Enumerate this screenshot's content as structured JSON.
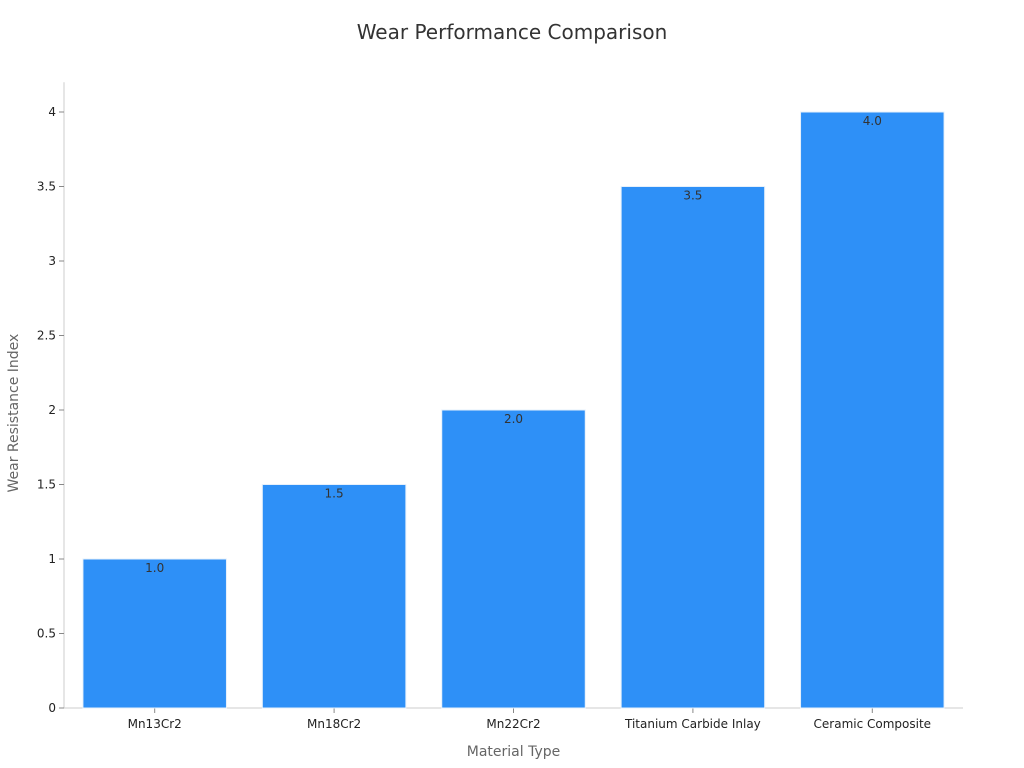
{
  "chart_data": {
    "type": "bar",
    "title": "Wear Performance Comparison",
    "xlabel": "Material Type",
    "ylabel": "Wear Resistance Index",
    "categories": [
      "Mn13Cr2",
      "Mn18Cr2",
      "Mn22Cr2",
      "Titanium Carbide Inlay",
      "Ceramic Composite"
    ],
    "values": [
      1.0,
      1.5,
      2.0,
      3.5,
      4.0
    ],
    "data_labels": [
      "1.0",
      "1.5",
      "2.0",
      "3.5",
      "4.0"
    ],
    "ylim": [
      0,
      4.2
    ],
    "yticks": [
      0,
      0.5,
      1,
      1.5,
      2,
      2.5,
      3,
      3.5,
      4
    ],
    "ytick_labels": [
      "0",
      "0.5",
      "1",
      "1.5",
      "2",
      "2.5",
      "3",
      "3.5",
      "4"
    ],
    "grid": false,
    "legend": "none",
    "bar_color": "#2e90f7",
    "bar_edge_color": "#e6f0fb",
    "axis_color": "#cccccc"
  }
}
